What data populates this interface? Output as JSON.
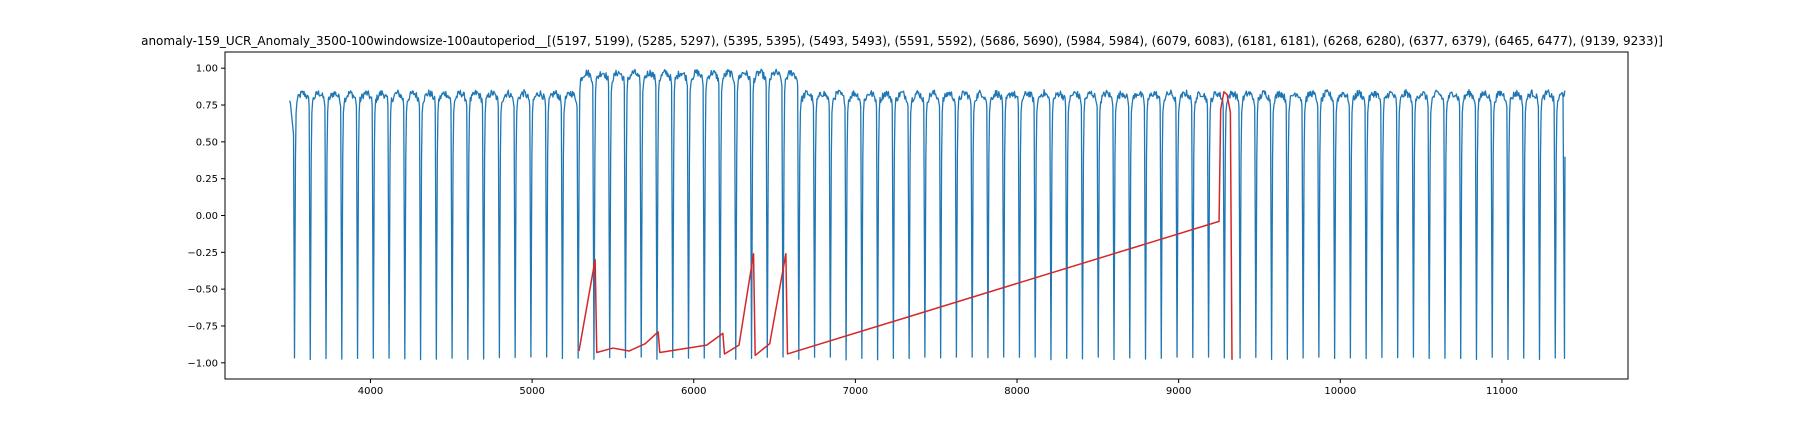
{
  "chart_data": {
    "type": "line",
    "title": "anomaly-159_UCR_Anomaly_3500-100windowsize-100autoperiod__[(5197, 5199), (5285, 5297), (5395, 5395), (5493, 5493), (5591, 5592), (5686, 5690), (5984, 5984), (6079, 6083), (6181, 6181), (6268, 6280), (6377, 6379), (6465, 6477), (9139, 9233)]",
    "xlabel": "",
    "ylabel": "",
    "xlim": [
      3100,
      11780
    ],
    "ylim": [
      -1.11,
      1.11
    ],
    "x_ticks": [
      4000,
      5000,
      6000,
      7000,
      8000,
      9000,
      10000,
      11000
    ],
    "x_tick_labels": [
      "4000",
      "5000",
      "6000",
      "7000",
      "8000",
      "9000",
      "10000",
      "11000"
    ],
    "y_ticks": [
      1.0,
      0.75,
      0.5,
      0.25,
      0.0,
      -0.25,
      -0.5,
      -0.75,
      -1.0
    ],
    "y_tick_labels": [
      "1.00",
      "0.75",
      "0.50",
      "0.25",
      "0.00",
      "−0.25",
      "−0.50",
      "−0.75",
      "−1.00"
    ],
    "grid": false,
    "legend": false,
    "series": [
      {
        "kind": "periodic-signal",
        "color": "#1f77b4",
        "x_start": 3500,
        "x_end": 11390,
        "period": 97.5,
        "first_trough": 3530,
        "plateau": 0.82,
        "trough": -0.97,
        "high_plateau_range": [
          5300,
          6650
        ],
        "high_plateau": 0.96,
        "end_value": 0.4
      },
      {
        "kind": "anomaly-overlay",
        "color": "#d62728",
        "x": [
          5290,
          5390,
          5400,
          5500,
          5600,
          5700,
          5780,
          5790,
          6080,
          6180,
          6190,
          6280,
          6370,
          6380,
          6470,
          6570,
          6580,
          9250,
          9260,
          9280,
          9300,
          9320,
          9330
        ],
        "y": [
          -0.92,
          -0.3,
          -0.93,
          -0.9,
          -0.92,
          -0.87,
          -0.79,
          -0.93,
          -0.88,
          -0.8,
          -0.94,
          -0.88,
          -0.26,
          -0.95,
          -0.87,
          -0.26,
          -0.94,
          -0.04,
          0.72,
          0.84,
          0.82,
          0.7,
          -0.98
        ]
      }
    ]
  }
}
